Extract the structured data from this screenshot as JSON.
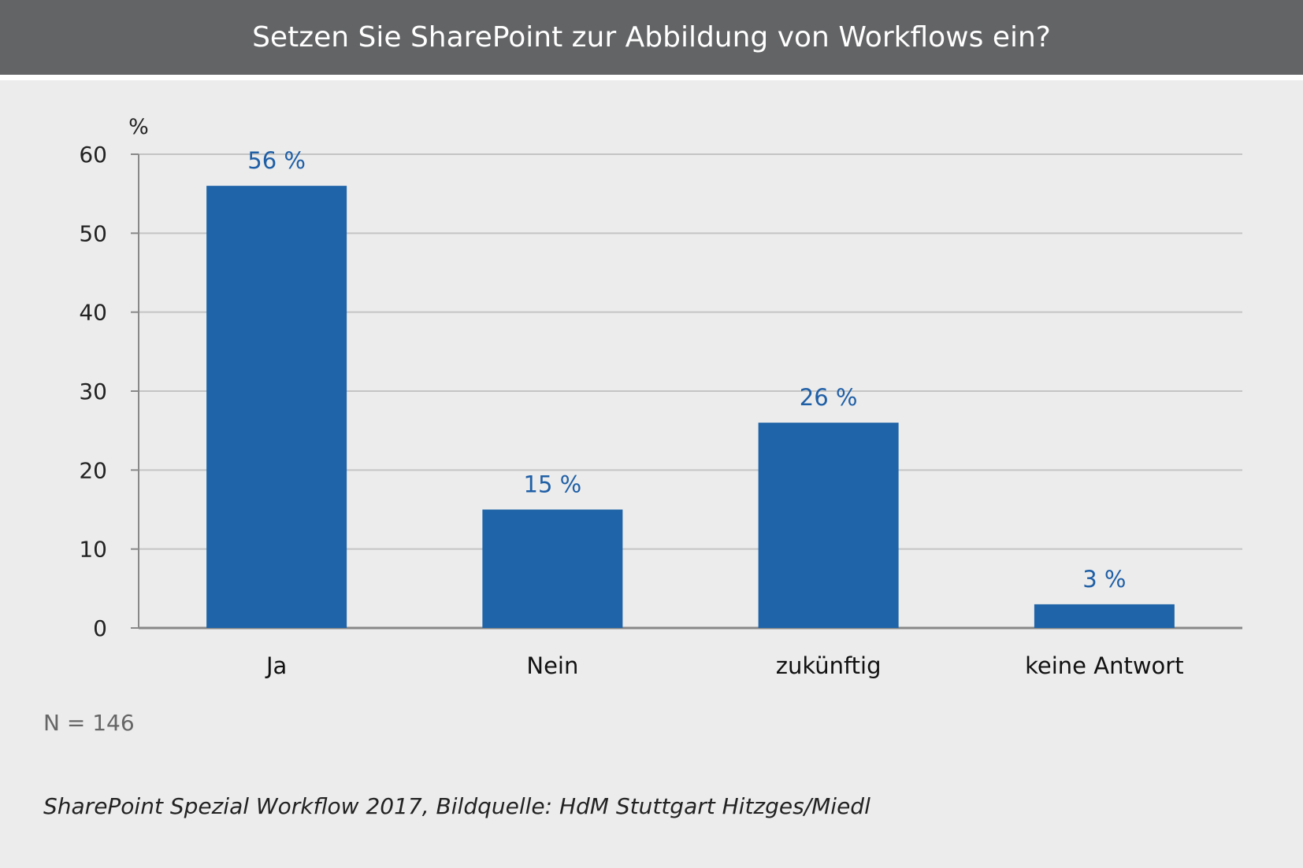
{
  "chart_data": {
    "type": "bar",
    "title": "Setzen Sie SharePoint zur Abbildung von Workflows ein?",
    "ylabel": "%",
    "xlabel": "",
    "categories": [
      "Ja",
      "Nein",
      "zukünftig",
      "keine Antwort"
    ],
    "values": [
      56,
      15,
      26,
      3
    ],
    "value_labels": [
      "56 %",
      "15 %",
      "26 %",
      "3 %"
    ],
    "ylim": [
      0,
      60
    ],
    "yticks": [
      0,
      10,
      20,
      30,
      40,
      50,
      60
    ],
    "grid": true,
    "bar_color": "#1f64a8",
    "value_label_color": "#1f5fa6"
  },
  "notes": {
    "sample_size": "N = 146",
    "source": "SharePoint Spezial Workflow 2017, Bildquelle: HdM Stuttgart Hitzges/Miedl"
  },
  "colors": {
    "title_bar": "#636466",
    "background": "#ececec"
  }
}
